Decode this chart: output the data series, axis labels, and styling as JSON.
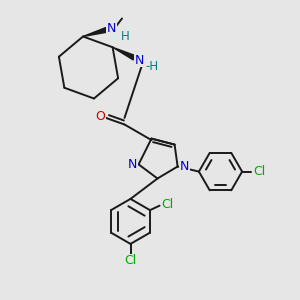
{
  "bg_color": "#e6e6e6",
  "bond_color": "#1a1a1a",
  "bond_width": 1.4,
  "N_color": "#0000cc",
  "O_color": "#cc0000",
  "Cl_color": "#00aa00",
  "NH_color": "#008080",
  "figsize": [
    3.0,
    3.0
  ],
  "dpi": 100,
  "xlim": [
    0,
    10
  ],
  "ylim": [
    0,
    10
  ]
}
